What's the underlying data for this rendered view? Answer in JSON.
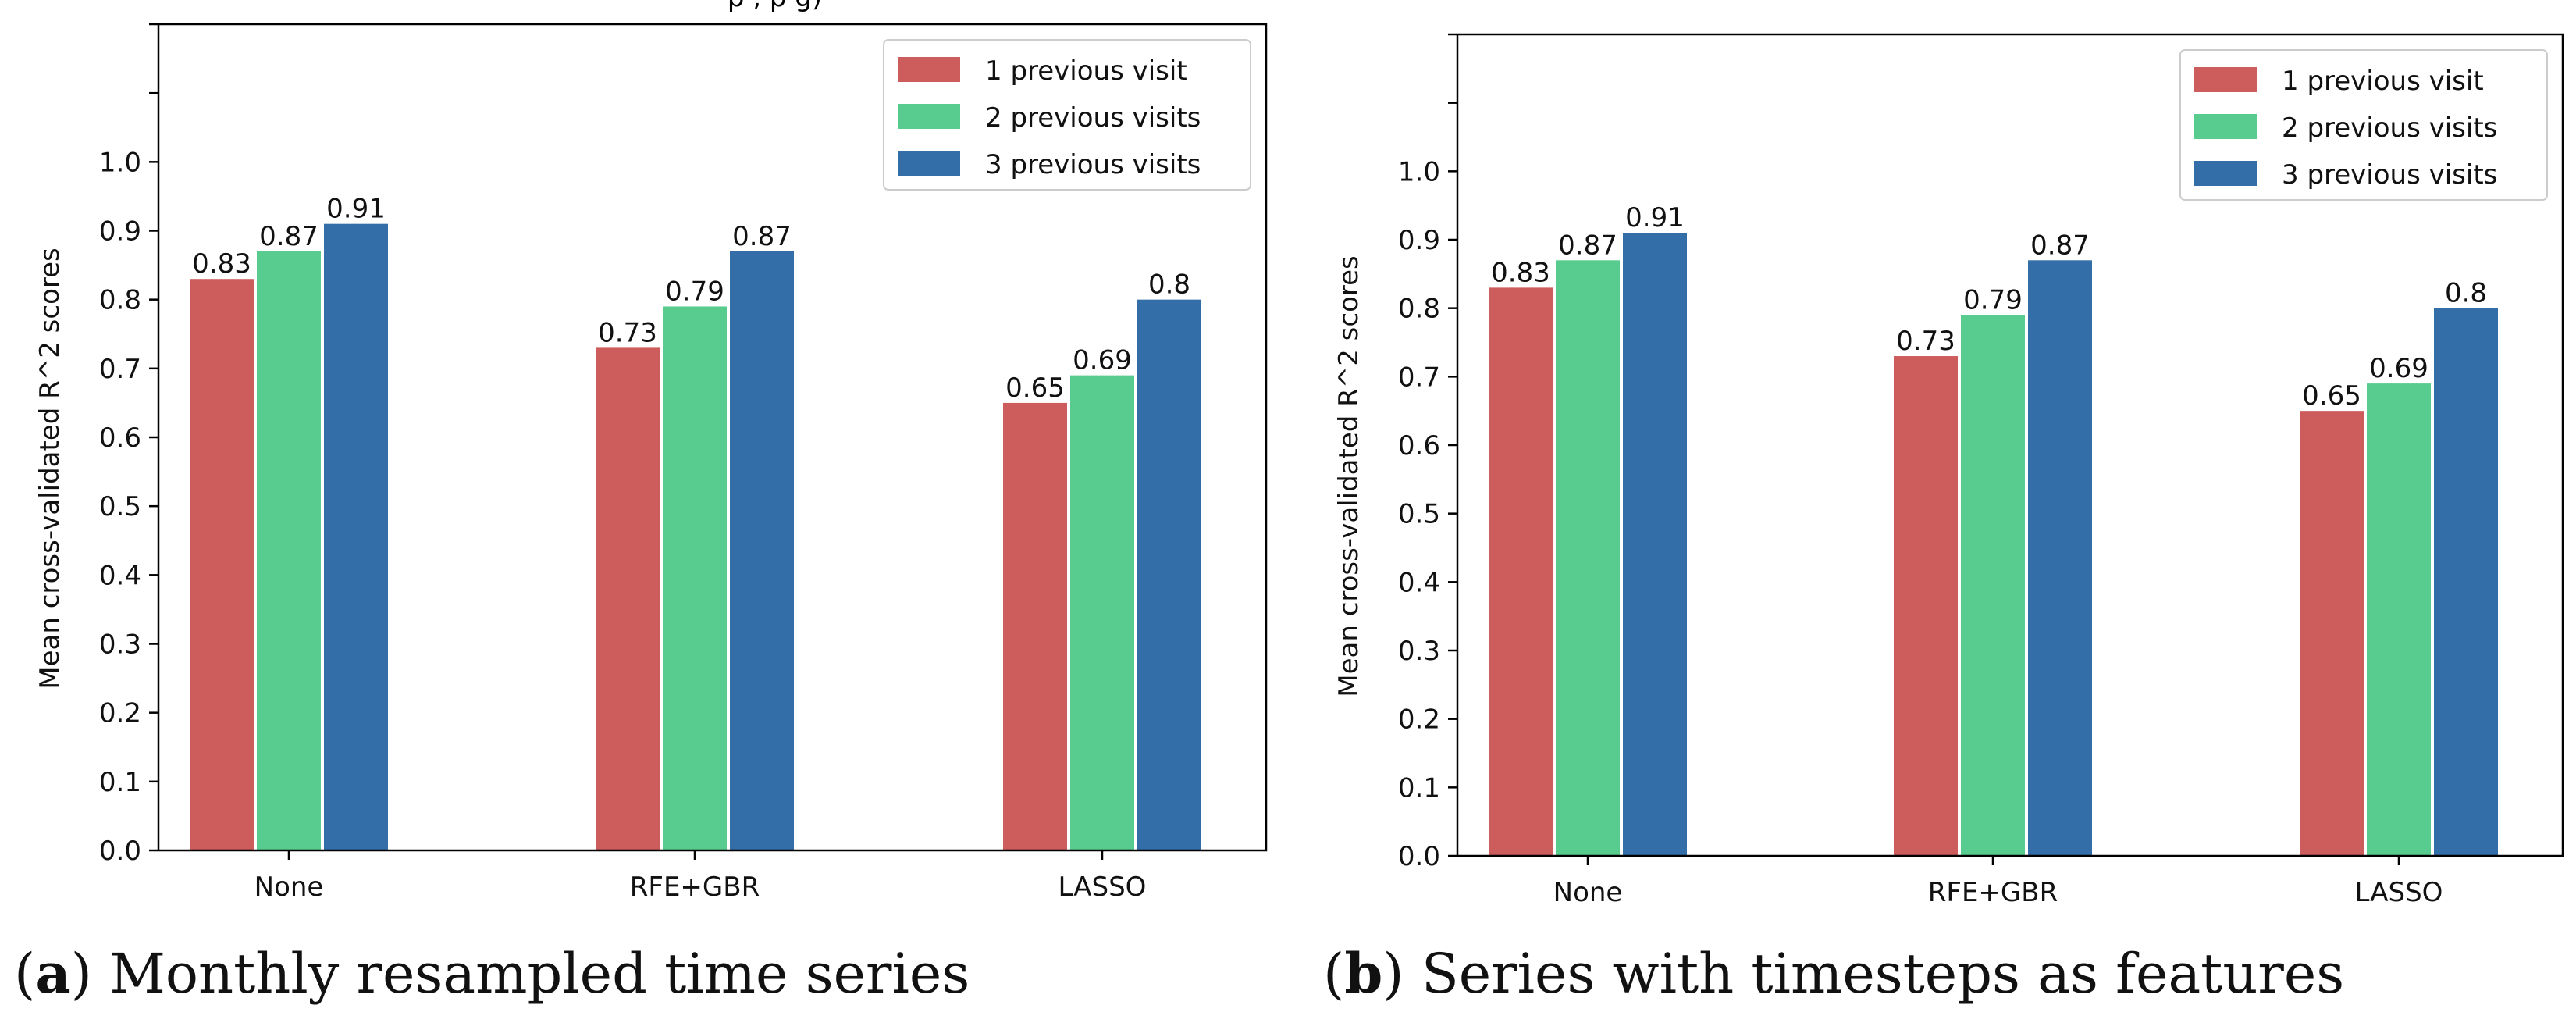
{
  "chart_data": [
    {
      "type": "bar",
      "caption": {
        "label": "a",
        "text": "Monthly resampled time series"
      },
      "cut_off_title": "p      ,          p   g)",
      "categories": [
        "None",
        "RFE+GBR",
        "LASSO"
      ],
      "series": [
        {
          "name": "1 previous visit",
          "color": "#cd5c5c",
          "values": [
            0.83,
            0.73,
            0.65
          ]
        },
        {
          "name": "2 previous visits",
          "color": "#57cc8e",
          "values": [
            0.87,
            0.79,
            0.69
          ]
        },
        {
          "name": "3 previous visits",
          "color": "#336ea8",
          "values": [
            0.91,
            0.87,
            0.8
          ]
        }
      ],
      "data_labels": [
        [
          "0.83",
          "0.73",
          "0.65"
        ],
        [
          "0.87",
          "0.79",
          "0.69"
        ],
        [
          "0.91",
          "0.87",
          "0.8"
        ]
      ],
      "ylabel": "Mean cross-validated R^2 scores",
      "xlabel": "",
      "yticks": [
        "0.0",
        "0.1",
        "0.2",
        "0.3",
        "0.4",
        "0.5",
        "0.6",
        "0.7",
        "0.8",
        "0.9",
        "1.0",
        "",
        ""
      ],
      "ylim": [
        0,
        1.2
      ],
      "legend": "top-right",
      "grid": false
    },
    {
      "type": "bar",
      "caption": {
        "label": "b",
        "text": "Series with timesteps as features"
      },
      "cut_off_title": "",
      "categories": [
        "None",
        "RFE+GBR",
        "LASSO"
      ],
      "series": [
        {
          "name": "1 previous visit",
          "color": "#cd5c5c",
          "values": [
            0.83,
            0.73,
            0.65
          ]
        },
        {
          "name": "2 previous visits",
          "color": "#57cc8e",
          "values": [
            0.87,
            0.79,
            0.69
          ]
        },
        {
          "name": "3 previous visits",
          "color": "#336ea8",
          "values": [
            0.91,
            0.87,
            0.8
          ]
        }
      ],
      "data_labels": [
        [
          "0.83",
          "0.73",
          "0.65"
        ],
        [
          "0.87",
          "0.79",
          "0.69"
        ],
        [
          "0.91",
          "0.87",
          "0.8"
        ]
      ],
      "ylabel": "Mean cross-validated R^2 scores",
      "xlabel": "",
      "yticks": [
        "0.0",
        "0.1",
        "0.2",
        "0.3",
        "0.4",
        "0.5",
        "0.6",
        "0.7",
        "0.8",
        "0.9",
        "1.0",
        "",
        ""
      ],
      "ylim": [
        0,
        1.2
      ],
      "legend": "top-right",
      "grid": false
    }
  ]
}
